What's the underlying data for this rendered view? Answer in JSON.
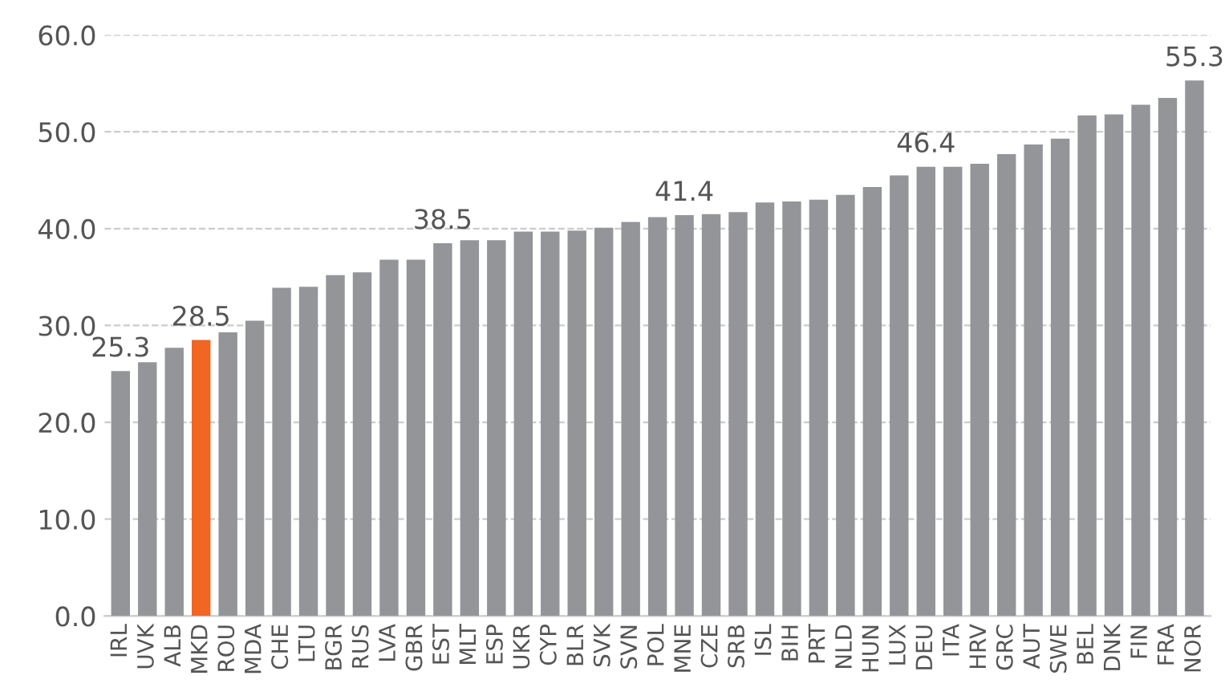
{
  "chart_data": {
    "type": "bar",
    "categories": [
      "IRL",
      "UVK",
      "ALB",
      "MKD",
      "ROU",
      "MDA",
      "CHE",
      "LTU",
      "BGR",
      "RUS",
      "LVA",
      "GBR",
      "EST",
      "MLT",
      "ESP",
      "UKR",
      "CYP",
      "BLR",
      "SVK",
      "SVN",
      "POL",
      "MNE",
      "CZE",
      "SRB",
      "ISL",
      "BIH",
      "PRT",
      "NLD",
      "HUN",
      "LUX",
      "DEU",
      "ITA",
      "HRV",
      "GRC",
      "AUT",
      "SWE",
      "BEL",
      "DNK",
      "FIN",
      "FRA",
      "NOR"
    ],
    "values": [
      25.3,
      26.2,
      27.7,
      28.5,
      29.3,
      30.5,
      33.9,
      34.0,
      35.2,
      35.5,
      36.8,
      36.8,
      38.5,
      38.8,
      38.8,
      39.7,
      39.7,
      39.8,
      40.1,
      40.7,
      41.2,
      41.4,
      41.5,
      41.7,
      42.7,
      42.8,
      43.0,
      43.5,
      44.3,
      45.5,
      46.4,
      46.4,
      46.7,
      47.7,
      48.7,
      49.3,
      51.7,
      51.8,
      52.8,
      53.5,
      55.3
    ],
    "colors": [
      "#939598",
      "#939598",
      "#939598",
      "#f26522",
      "#939598",
      "#939598",
      "#939598",
      "#939598",
      "#939598",
      "#939598",
      "#939598",
      "#939598",
      "#939598",
      "#939598",
      "#939598",
      "#939598",
      "#939598",
      "#939598",
      "#939598",
      "#939598",
      "#939598",
      "#939598",
      "#939598",
      "#939598",
      "#939598",
      "#939598",
      "#939598",
      "#939598",
      "#939598",
      "#939598",
      "#939598",
      "#939598",
      "#939598",
      "#939598",
      "#939598",
      "#939598",
      "#939598",
      "#939598",
      "#939598",
      "#939598",
      "#939598"
    ],
    "value_labels": [
      "25.3",
      null,
      null,
      "28.5",
      null,
      null,
      null,
      null,
      null,
      null,
      null,
      null,
      "38.5",
      null,
      null,
      null,
      null,
      null,
      null,
      null,
      null,
      "41.4",
      null,
      null,
      null,
      null,
      null,
      null,
      null,
      null,
      "46.4",
      null,
      null,
      null,
      null,
      null,
      null,
      null,
      null,
      null,
      "55.3"
    ],
    "ylim": [
      0,
      60
    ],
    "yticks": [
      {
        "value": 0,
        "label": "0.0"
      },
      {
        "value": 10,
        "label": "10.0"
      },
      {
        "value": 20,
        "label": "20.0"
      },
      {
        "value": 30,
        "label": "30.0"
      },
      {
        "value": 40,
        "label": "40.0"
      },
      {
        "value": 50,
        "label": "50.0"
      },
      {
        "value": 60,
        "label": "60.0"
      }
    ],
    "grid": "y"
  }
}
